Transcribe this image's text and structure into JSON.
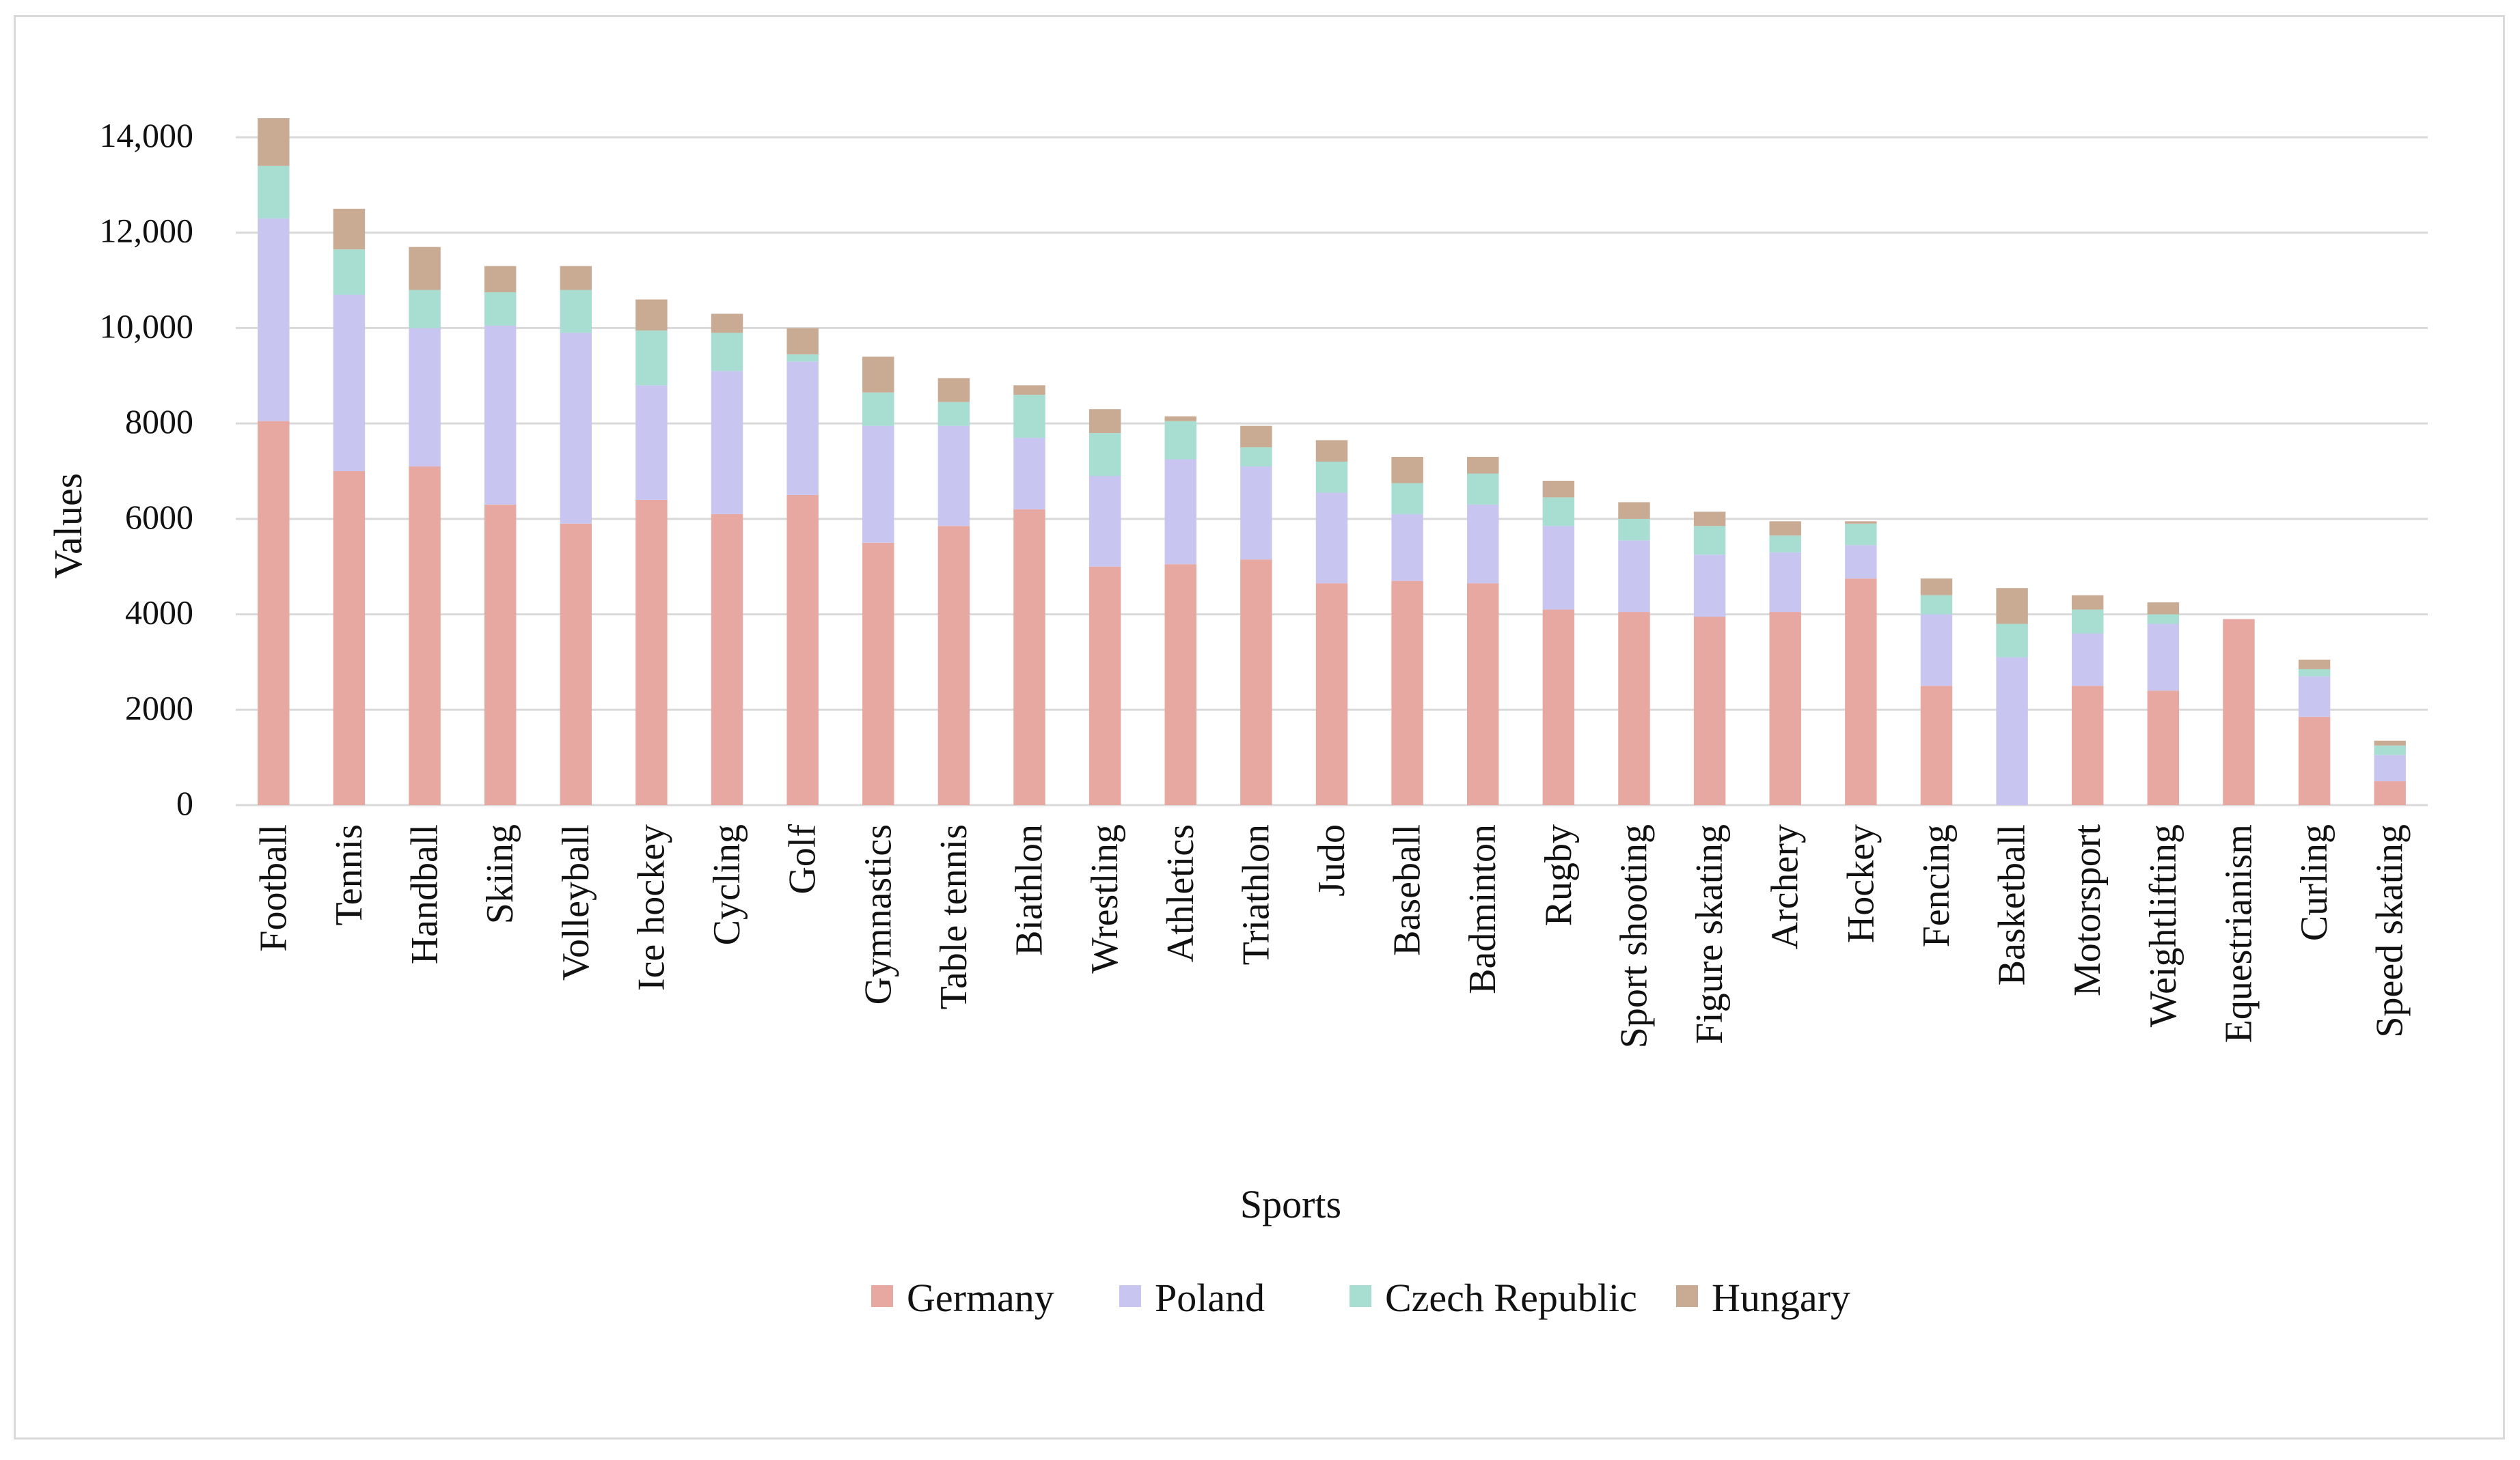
{
  "chart_data": {
    "type": "bar",
    "stacked": true,
    "title": "",
    "xlabel": "Sports",
    "ylabel": "Values",
    "ylim": [
      0,
      14000
    ],
    "yticks": [
      0,
      2000,
      4000,
      6000,
      8000,
      10000,
      12000,
      14000
    ],
    "ytick_labels": [
      "0",
      "2000",
      "4000",
      "6000",
      "8000",
      "10,000",
      "12,000",
      "14,000"
    ],
    "grid": true,
    "legend_position": "bottom-center",
    "categories": [
      "Football",
      "Tennis",
      "Handball",
      "Skiing",
      "Volleyball",
      "Ice hockey",
      "Cycling",
      "Golf",
      "Gymnastics",
      "Table tennis",
      "Biathlon",
      "Wrestling",
      "Athletics",
      "Triathlon",
      "Judo",
      "Baseball",
      "Badminton",
      "Rugby",
      "Sport shooting",
      "Figure skating",
      "Archery",
      "Hockey",
      "Fencing",
      "Basketball",
      "Motorsport",
      "Weightlifting",
      "Equestrianism",
      "Curling",
      "Speed skating"
    ],
    "series": [
      {
        "name": "Germany",
        "color": "#e8a8a2",
        "values": [
          8050,
          7000,
          7100,
          6300,
          5900,
          6400,
          6100,
          6500,
          5500,
          5850,
          6200,
          5000,
          5050,
          5150,
          4650,
          4700,
          4650,
          4100,
          4050,
          3950,
          4050,
          4750,
          2500,
          0,
          2500,
          2400,
          3900,
          1850,
          500
        ]
      },
      {
        "name": "Poland",
        "color": "#c8c6f0",
        "values": [
          4250,
          3700,
          2900,
          3750,
          4000,
          2400,
          3000,
          2800,
          2450,
          2100,
          1500,
          1900,
          2200,
          1950,
          1900,
          1400,
          1650,
          1750,
          1500,
          1300,
          1250,
          700,
          1500,
          3100,
          1100,
          1400,
          0,
          850,
          550
        ]
      },
      {
        "name": "Czech Republic",
        "color": "#a8ddd2",
        "values": [
          1100,
          950,
          800,
          700,
          900,
          1150,
          800,
          150,
          700,
          500,
          900,
          900,
          800,
          400,
          650,
          650,
          650,
          600,
          450,
          600,
          350,
          450,
          400,
          700,
          500,
          200,
          0,
          150,
          200
        ]
      },
      {
        "name": "Hungary",
        "color": "#c9ab94",
        "values": [
          1000,
          850,
          900,
          550,
          500,
          650,
          400,
          550,
          750,
          500,
          200,
          500,
          100,
          450,
          450,
          550,
          350,
          350,
          350,
          300,
          300,
          50,
          350,
          750,
          300,
          250,
          0,
          200,
          100
        ]
      }
    ]
  }
}
